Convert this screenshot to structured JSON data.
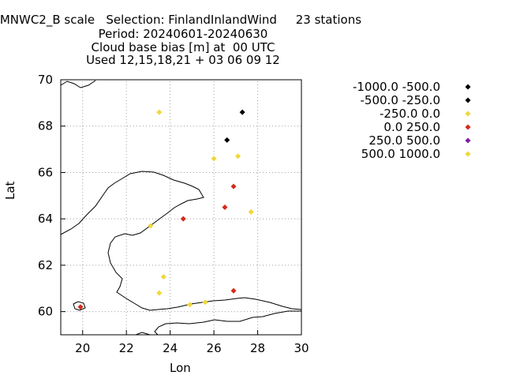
{
  "title_lines": [
    ": MNWC2_B scale   Selection: FinlandInlandWind     23 stations",
    "Period: 20240601-20240630",
    "Cloud base bias [m] at  00 UTC",
    "Used 12,15,18,21 + 03 06 09 12"
  ],
  "chart_data": {
    "type": "scatter",
    "xlabel": "Lon",
    "ylabel": "Lat",
    "xlim": [
      19,
      30
    ],
    "ylim": [
      59,
      70
    ],
    "xticks": [
      "20",
      "22",
      "24",
      "26",
      "28",
      "30"
    ],
    "yticks": [
      "60",
      "62",
      "64",
      "66",
      "68",
      "70"
    ],
    "grid": true,
    "legend_placement": "right",
    "classes": [
      {
        "name": "-1000.0 -500.0",
        "color": "#000000"
      },
      {
        "name": "-500.0 -250.0",
        "color": "#000000"
      },
      {
        "name": "-250.0 0.0",
        "color": "#f0d838"
      },
      {
        "name": "0.0 250.0",
        "color": "#d42a1a"
      },
      {
        "name": "250.0 500.0",
        "color": "#7b1fa8"
      },
      {
        "name": "500.0 1000.0",
        "color": "#f0d838"
      }
    ],
    "points": [
      {
        "x": 27.3,
        "y": 68.6,
        "class": 1
      },
      {
        "x": 26.6,
        "y": 67.4,
        "class": 1
      },
      {
        "x": 23.5,
        "y": 68.6,
        "class": 2
      },
      {
        "x": 27.1,
        "y": 66.7,
        "class": 2
      },
      {
        "x": 26.0,
        "y": 66.6,
        "class": 2
      },
      {
        "x": 26.9,
        "y": 65.4,
        "class": 3
      },
      {
        "x": 26.5,
        "y": 64.5,
        "class": 3
      },
      {
        "x": 27.7,
        "y": 64.3,
        "class": 2
      },
      {
        "x": 24.6,
        "y": 64.0,
        "class": 3
      },
      {
        "x": 23.1,
        "y": 63.7,
        "class": 2
      },
      {
        "x": 23.7,
        "y": 61.5,
        "class": 2
      },
      {
        "x": 23.5,
        "y": 60.8,
        "class": 2
      },
      {
        "x": 24.9,
        "y": 60.3,
        "class": 2
      },
      {
        "x": 25.6,
        "y": 60.4,
        "class": 2
      },
      {
        "x": 26.9,
        "y": 60.9,
        "class": 3
      },
      {
        "x": 19.9,
        "y": 60.2,
        "class": 3
      }
    ]
  },
  "colors": {
    "coastline": "#000000",
    "grid": "#a0a0a0"
  }
}
